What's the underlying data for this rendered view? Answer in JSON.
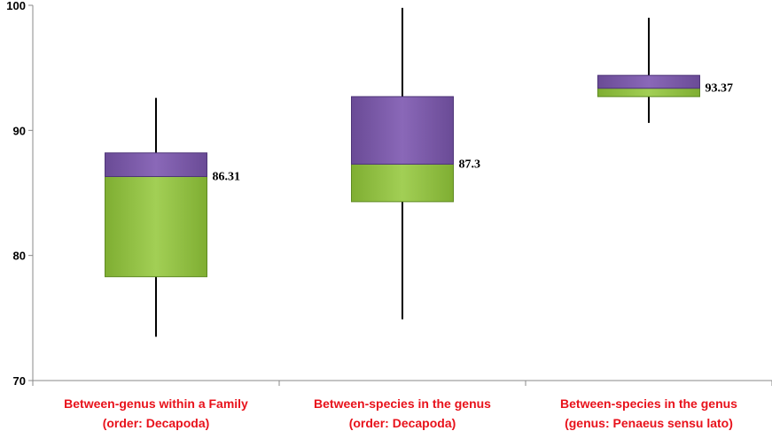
{
  "chart_data": {
    "type": "box",
    "ylim": [
      70,
      100
    ],
    "yticks": [
      70,
      80,
      90,
      100
    ],
    "grid": false,
    "colors": {
      "upper_box": "#7b5aa6",
      "lower_box": "#8fbf3f",
      "category_text": "#e8121b",
      "axis": "#888888"
    },
    "categories": [
      {
        "label_line1": "Between-genus within a Family",
        "label_line2": "(order: Decapoda)",
        "min": 73.5,
        "q1": 78.3,
        "median": 86.31,
        "q3": 88.2,
        "max": 92.6,
        "median_label": "86.31"
      },
      {
        "label_line1": "Between-species in the genus",
        "label_line2": "(order: Decapoda)",
        "min": 74.9,
        "q1": 84.3,
        "median": 87.3,
        "q3": 92.7,
        "max": 99.8,
        "median_label": "87.3"
      },
      {
        "label_line1": "Between-species in the genus",
        "label_line2": "(genus: Penaeus sensu lato)",
        "min": 90.6,
        "q1": 92.7,
        "median": 93.37,
        "q3": 94.4,
        "max": 99.0,
        "median_label": "93.37"
      }
    ]
  }
}
